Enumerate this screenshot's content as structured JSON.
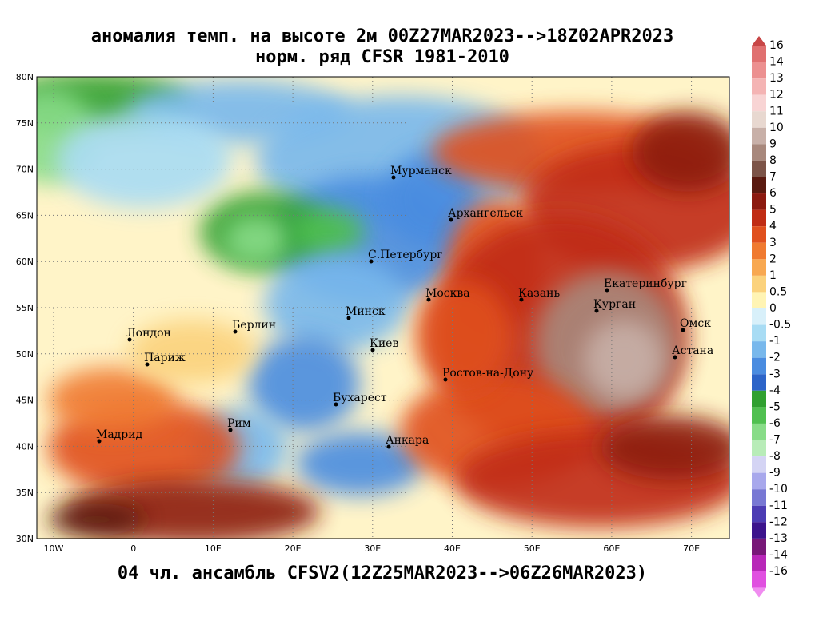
{
  "map": {
    "title": "аномалия темп. на высоте 2м 00Z27MAR2023-->18Z02APR2023",
    "subtitle": "норм. ряд CFSR 1981-2010",
    "footer": "04 чл. ансамбль CFSV2(12Z25MAR2023-->06Z26MAR2023)",
    "lat_labels": [
      "80N",
      "75N",
      "70N",
      "65N",
      "60N",
      "55N",
      "50N",
      "45N",
      "40N",
      "35N",
      "30N"
    ],
    "lon_labels": [
      "10W",
      "0",
      "10E",
      "20E",
      "30E",
      "40E",
      "50E",
      "60E",
      "70E"
    ],
    "cities": [
      "Мурманск",
      "Архангельск",
      "С.Петербург",
      "Москва",
      "Казань",
      "Екатеринбург",
      "Курган",
      "Омск",
      "Астана",
      "Минск",
      "Лондон",
      "Берлин",
      "Париж",
      "Киев",
      "Ростов-на-Дону",
      "Бухарест",
      "Рим",
      "Мадрид",
      "Анкара"
    ],
    "colorbar": {
      "labels": [
        16,
        14,
        13,
        12,
        11,
        10,
        9,
        8,
        7,
        6,
        5,
        4,
        3,
        2,
        1,
        0.5,
        0,
        -0.5,
        -1,
        -2,
        -3,
        -4,
        -5,
        -6,
        -7,
        -8,
        -9,
        -10,
        -11,
        -12,
        -13,
        -14,
        -16
      ],
      "colors": [
        "#c84646",
        "#e07070",
        "#ec9090",
        "#f4b4b4",
        "#f8d4d4",
        "#e8d8d0",
        "#c8b0a8",
        "#a8887c",
        "#7c5448",
        "#5a1a10",
        "#8c1a10",
        "#c02c14",
        "#e0501e",
        "#f07a30",
        "#f8a850",
        "#fbd27c",
        "#fff4b4",
        "#d8f0fa",
        "#a8dcf4",
        "#78b8ec",
        "#4a8ce0",
        "#2c64c8",
        "#30a030",
        "#50c050",
        "#88dc88",
        "#b8ecb8",
        "#d4d4f4",
        "#a8a8ec",
        "#7878d4",
        "#4c3cb4",
        "#3c148c",
        "#781878",
        "#b828b8",
        "#e050e0",
        "#f08cf0"
      ]
    }
  }
}
